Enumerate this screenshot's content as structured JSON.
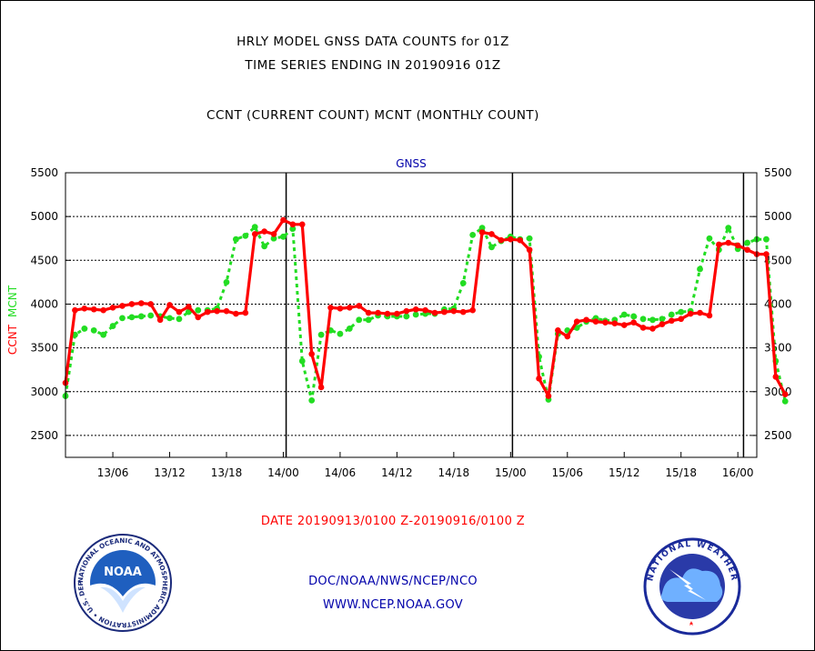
{
  "header": {
    "line1": "HRLY MODEL GNSS DATA COUNTS for 01Z",
    "line2": "TIME SERIES ENDING IN 20190916 01Z",
    "line3": "CCNT (CURRENT COUNT) MCNT (MONTHLY COUNT)"
  },
  "date_range": "DATE 20190913/0100 Z-20190916/0100 Z",
  "footer": {
    "org": "DOC/NOAA/NWS/NCEP/NCO",
    "url": "WWW.NCEP.NOAA.GOV"
  },
  "logos": {
    "noaa_text": "NOAA",
    "noaa_ring": "NATIONAL OCEANIC AND ATMOSPHERIC ADMINISTRATION • U.S. DEPARTMENT OF COMMERCE •",
    "nws_ring": "NATIONAL WEATHER SERVICE"
  },
  "colors": {
    "ccnt": "#ff0000",
    "mcnt": "#22dd22",
    "axis": "#000000",
    "blue_text": "#0000aa"
  },
  "chart_data": {
    "type": "line",
    "title": "GNSS",
    "ylabel_parts": [
      "CCNT",
      "MCNT"
    ],
    "ylim": [
      2250,
      5500
    ],
    "yticks": [
      2500,
      3000,
      3500,
      4000,
      4500,
      5000,
      5500
    ],
    "xlim": [
      0,
      73
    ],
    "xticks": [
      {
        "x": 5,
        "label": "13/06"
      },
      {
        "x": 11,
        "label": "13/12"
      },
      {
        "x": 17,
        "label": "13/18"
      },
      {
        "x": 23,
        "label": "14/00"
      },
      {
        "x": 29,
        "label": "14/06"
      },
      {
        "x": 35,
        "label": "14/12"
      },
      {
        "x": 41,
        "label": "14/18"
      },
      {
        "x": 47,
        "label": "15/00"
      },
      {
        "x": 53,
        "label": "15/06"
      },
      {
        "x": 59,
        "label": "15/12"
      },
      {
        "x": 65,
        "label": "15/18"
      },
      {
        "x": 71,
        "label": "16/00"
      }
    ],
    "day_lines": [
      23.3,
      47.2,
      71.6
    ],
    "grid": "horizontal dotted",
    "series": [
      {
        "name": "CCNT",
        "values": [
          3100,
          3930,
          3950,
          3940,
          3930,
          3960,
          3980,
          4000,
          4010,
          4000,
          3820,
          3990,
          3910,
          3970,
          3850,
          3910,
          3920,
          3920,
          3890,
          3900,
          4800,
          4830,
          4800,
          4960,
          4910,
          4910,
          3430,
          3050,
          3960,
          3950,
          3960,
          3980,
          3900,
          3900,
          3890,
          3890,
          3920,
          3940,
          3930,
          3900,
          3910,
          3920,
          3910,
          3930,
          4820,
          4800,
          4730,
          4740,
          4730,
          4620,
          3150,
          2950,
          3700,
          3630,
          3800,
          3820,
          3800,
          3790,
          3780,
          3760,
          3790,
          3730,
          3720,
          3770,
          3810,
          3830,
          3890,
          3900,
          3870,
          4680,
          4700,
          4670,
          4620,
          4570,
          4570,
          3170,
          2970
        ]
      },
      {
        "name": "MCNT",
        "values": [
          2950,
          3650,
          3720,
          3700,
          3650,
          3750,
          3840,
          3850,
          3860,
          3870,
          3860,
          3840,
          3830,
          3910,
          3930,
          3930,
          3950,
          4250,
          4740,
          4780,
          4880,
          4660,
          4750,
          4770,
          4860,
          3350,
          2900,
          3650,
          3700,
          3660,
          3720,
          3820,
          3820,
          3870,
          3860,
          3860,
          3860,
          3880,
          3890,
          3890,
          3940,
          3950,
          4240,
          4790,
          4870,
          4650,
          4720,
          4770,
          4740,
          4750,
          3400,
          2910,
          3660,
          3700,
          3730,
          3800,
          3840,
          3810,
          3820,
          3880,
          3860,
          3830,
          3820,
          3830,
          3880,
          3910,
          3920,
          4400,
          4750,
          4620,
          4870,
          4630,
          4700,
          4740,
          4740,
          3350,
          2890
        ]
      }
    ]
  }
}
